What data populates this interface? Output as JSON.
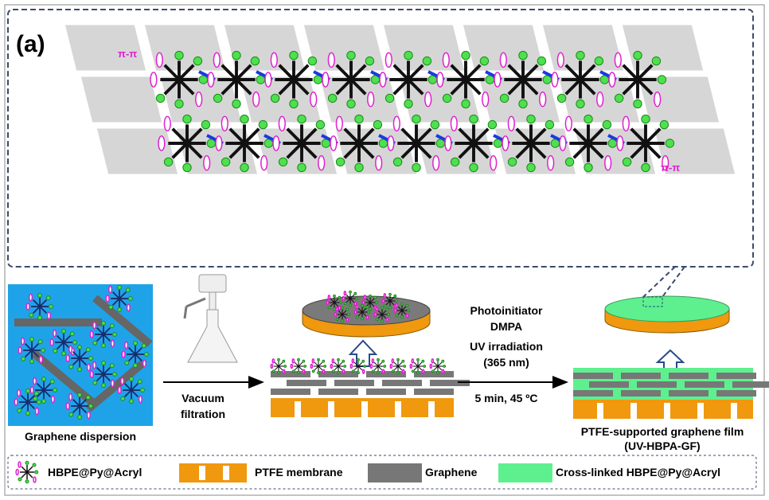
{
  "panel_label": "(a)",
  "annotations": [
    "π-π",
    "π-π"
  ],
  "steps": {
    "dispersion": "Graphene dispersion",
    "filtration": [
      "Vacuum",
      "filtration"
    ],
    "uv_conditions": [
      "Photoinitiator",
      "DMPA",
      "UV irradiation",
      "(365 nm)"
    ],
    "time_temp": "5 min, 45 ºC",
    "product": [
      "PTFE-supported graphene film",
      "(UV-HBPA-GF)"
    ]
  },
  "legend": [
    "HBPE@Py@Acryl",
    "PTFE membrane",
    "Graphene",
    "Cross-linked HBPE@Py@Acryl"
  ]
}
